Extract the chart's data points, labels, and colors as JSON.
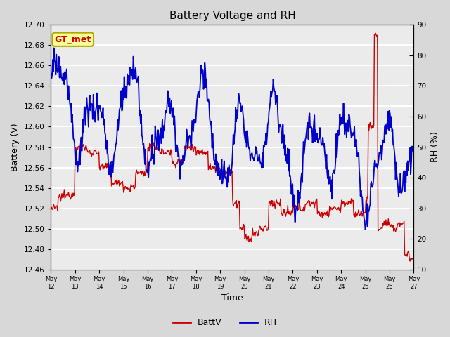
{
  "title": "Battery Voltage and RH",
  "xlabel": "Time",
  "ylabel_left": "Battery (V)",
  "ylabel_right": "RH (%)",
  "annotation_text": "GT_met",
  "annotation_bg": "#FFFF99",
  "annotation_border": "#AAAA00",
  "annotation_text_color": "#CC0000",
  "left_ylim": [
    12.46,
    12.7
  ],
  "right_ylim": [
    10,
    90
  ],
  "left_yticks": [
    12.46,
    12.48,
    12.5,
    12.52,
    12.54,
    12.56,
    12.58,
    12.6,
    12.62,
    12.64,
    12.66,
    12.68,
    12.7
  ],
  "right_yticks": [
    10,
    20,
    30,
    40,
    50,
    60,
    70,
    80,
    90
  ],
  "background_color": "#D8D8D8",
  "plot_bg_light": "#EBEBEB",
  "plot_bg_dark": "#D8D8D8",
  "grid_color": "#FFFFFF",
  "batt_color": "#CC0000",
  "rh_color": "#0000CC",
  "x_tick_labels": [
    "May 12",
    "May 13",
    "May 14",
    "May 15",
    "May 16",
    "May 17",
    "May 18",
    "May 19",
    "May 20",
    "May 21",
    "May 22",
    "May 23",
    "May 24",
    "May 25",
    "May 26",
    "May 27"
  ],
  "n_points": 600
}
